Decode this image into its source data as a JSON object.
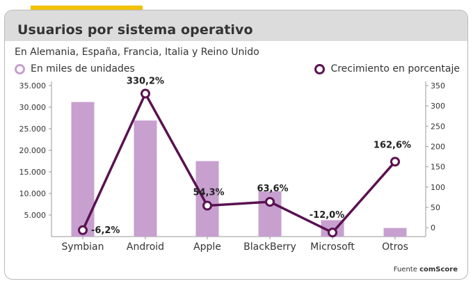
{
  "title": "Usuarios por sistema operativo",
  "subtitle": "En Alemania, España, Francia, Italia y Reino Unido",
  "legend": {
    "bars": "En miles de unidades",
    "line": "Crecimiento en porcentaje"
  },
  "source": {
    "label": "Fuente",
    "name": "comScore"
  },
  "colors": {
    "bar": "#c7a0cf",
    "line": "#5a1150",
    "accent": "#f2c200",
    "title_band": "#dcdcdc"
  },
  "chart_data": {
    "type": "bar+line",
    "categories": [
      "Symbian",
      "Android",
      "Apple",
      "BlackBerry",
      "Microsoft",
      "Otros"
    ],
    "series": [
      {
        "name": "En miles de unidades",
        "type": "bar",
        "axis": "left",
        "values": [
          31200,
          26900,
          17500,
          10500,
          3800,
          2000
        ]
      },
      {
        "name": "Crecimiento en porcentaje",
        "type": "line",
        "axis": "right",
        "values": [
          -6.2,
          330.2,
          54.3,
          63.6,
          -12.0,
          162.6
        ],
        "labels": [
          "-6,2%",
          "330,2%",
          "54,3%",
          "63,6%",
          "-12,0%",
          "162,6%"
        ]
      }
    ],
    "left_axis": {
      "range": [
        0,
        35000
      ],
      "ticks": [
        "35.000",
        "30.000",
        "25.000",
        "20.000",
        "15.000",
        "10.000",
        "5.000"
      ]
    },
    "right_axis": {
      "range": [
        -22,
        350
      ],
      "ticks": [
        "350",
        "300",
        "250",
        "200",
        "150",
        "100",
        "50",
        "0"
      ]
    },
    "grid": false
  }
}
